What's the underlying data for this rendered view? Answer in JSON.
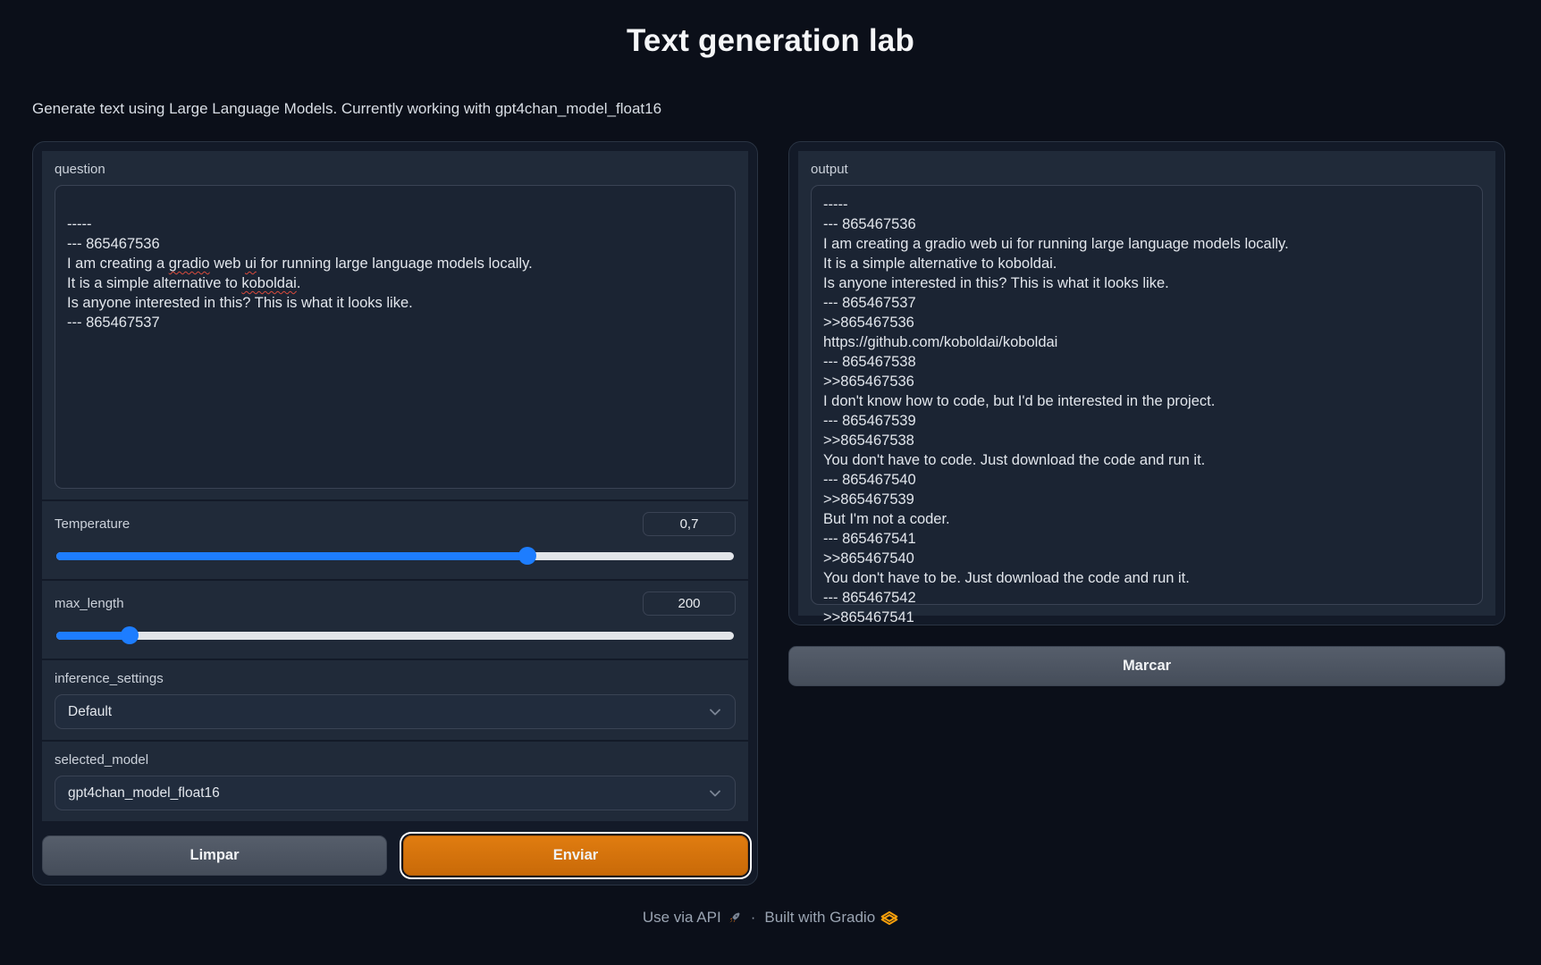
{
  "header": {
    "title": "Text generation lab",
    "subtitle": "Generate text using Large Language Models. Currently working with gpt4chan_model_float16"
  },
  "left_panel": {
    "question": {
      "label": "question",
      "value": "-----\n--- 865467536\nI am creating a gradio web ui for running large language models locally.\nIt is a simple alternative to koboldai.\nIs anyone interested in this? This is what it looks like.\n--- 865467537",
      "misspelled_words": [
        "gradio",
        "ui",
        "koboldai"
      ]
    },
    "temperature": {
      "label": "Temperature",
      "value": "0,7",
      "percent": 69.5
    },
    "max_length": {
      "label": "max_length",
      "value": "200",
      "percent": 10.8
    },
    "inference_settings": {
      "label": "inference_settings",
      "selected": "Default"
    },
    "selected_model": {
      "label": "selected_model",
      "selected": "gpt4chan_model_float16"
    },
    "buttons": {
      "clear": "Limpar",
      "submit": "Enviar"
    }
  },
  "right_panel": {
    "output": {
      "label": "output",
      "value": "-----\n--- 865467536\nI am creating a gradio web ui for running large language models locally.\nIt is a simple alternative to koboldai.\nIs anyone interested in this? This is what it looks like.\n--- 865467537\n>>865467536\nhttps://github.com/koboldai/koboldai\n--- 865467538\n>>865467536\nI don't know how to code, but I'd be interested in the project.\n--- 865467539\n>>865467538\nYou don't have to code. Just download the code and run it.\n--- 865467540\n>>865467539\nBut I'm not a coder.\n--- 865467541\n>>865467540\nYou don't have to be. Just download the code and run it.\n--- 865467542\n>>865467541"
    },
    "mark_button": "Marcar"
  },
  "footer": {
    "use_via_api": "Use via API",
    "separator": "·",
    "built_with": "Built with Gradio"
  },
  "colors": {
    "page_bg": "#0b0f19",
    "accent_blue": "#1d7dff",
    "primary_orange": "#d8730a",
    "gradio_logo_orange": "#f59e0b"
  }
}
